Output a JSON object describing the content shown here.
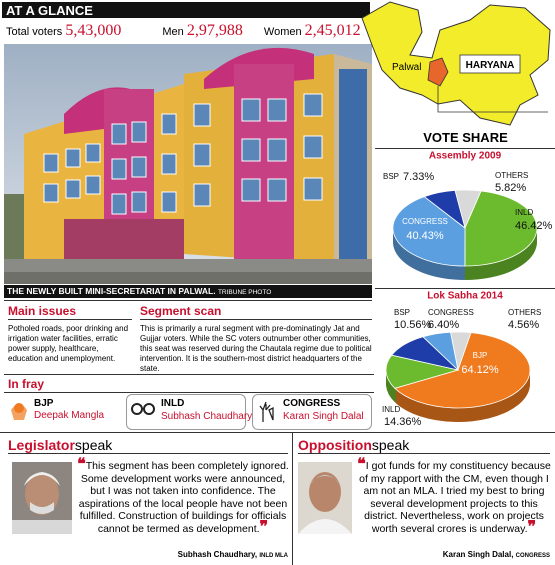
{
  "header": {
    "title": "AT A GLANCE"
  },
  "stats": [
    {
      "label": "Total voters",
      "value": "5,43,000"
    },
    {
      "label": "Men",
      "value": "2,97,988"
    },
    {
      "label": "Women",
      "value": "2,45,012"
    }
  ],
  "map": {
    "district": "Palwal",
    "state": "HARYANA"
  },
  "photo": {
    "caption": "THE NEWLY BUILT MINI-SECRETARIAT IN PALWAL.",
    "credit": "TRIBUNE PHOTO"
  },
  "vote_share_title": "VOTE SHARE",
  "chart_data": [
    {
      "type": "pie",
      "title": "Assembly 2009",
      "categories": [
        "OTHERS",
        "INLD",
        "CONGRESS",
        "BSP"
      ],
      "values": [
        5.82,
        46.42,
        40.43,
        7.33
      ],
      "value_labels": [
        "5.82%",
        "46.42%",
        "40.43%",
        "7.33%"
      ],
      "colors": [
        "#d9d9d9",
        "#6cbb2f",
        "#5b9fe0",
        "#1e3da8"
      ]
    },
    {
      "type": "pie",
      "title": "Lok Sabha 2014",
      "categories": [
        "OTHERS",
        "BJP",
        "INLD",
        "BSP",
        "CONGRESS"
      ],
      "values": [
        4.56,
        64.12,
        14.36,
        10.56,
        6.4
      ],
      "value_labels": [
        "4.56%",
        "64.12%",
        "14.36%",
        "10.56%",
        "6.40%"
      ],
      "colors": [
        "#d9d9d9",
        "#f07b1f",
        "#6cbb2f",
        "#1e3da8",
        "#5b9fe0"
      ]
    }
  ],
  "main_issues": {
    "title": "Main issues",
    "text": "Potholed roads, poor drinking and irrigation water facilities, erratic power supply, healthcare, education and unemployment."
  },
  "segment_scan": {
    "title": "Segment scan",
    "text": "This is primarily a rural segment with pre-dominatingly Jat and Gujjar voters. While the SC voters outnumber other communities, this seat was reserved during the Chautala regime due to political intervention. It is the southern-most district headquarters of the state."
  },
  "in_fray": {
    "title": "In fray",
    "candidates": [
      {
        "party": "BJP",
        "name": "Deepak Mangla"
      },
      {
        "party": "INLD",
        "name": "Subhash Chaudhary"
      },
      {
        "party": "CONGRESS",
        "name": "Karan Singh Dalal"
      }
    ]
  },
  "legislator": {
    "title_a": "Legislator",
    "title_b": "speak",
    "quote": "This segment has been completely ignored. Some development works were announced, but I was not taken into confidence. The aspirations of the local people have not been fulfilled. Construction of buildings for officials cannot be termed as development.",
    "attribution": "Subhash Chaudhary,",
    "role": "INLD MLA"
  },
  "opposition": {
    "title_a": "Opposition",
    "title_b": "speak",
    "quote": "I got funds for my constituency because of my rapport with the CM, even though I am not an MLA. I tried my best to bring several development projects to this district. Nevertheless, work on projects worth several crores is underway.",
    "attribution": "Karan Singh Dalal,",
    "role": "CONGRESS"
  }
}
